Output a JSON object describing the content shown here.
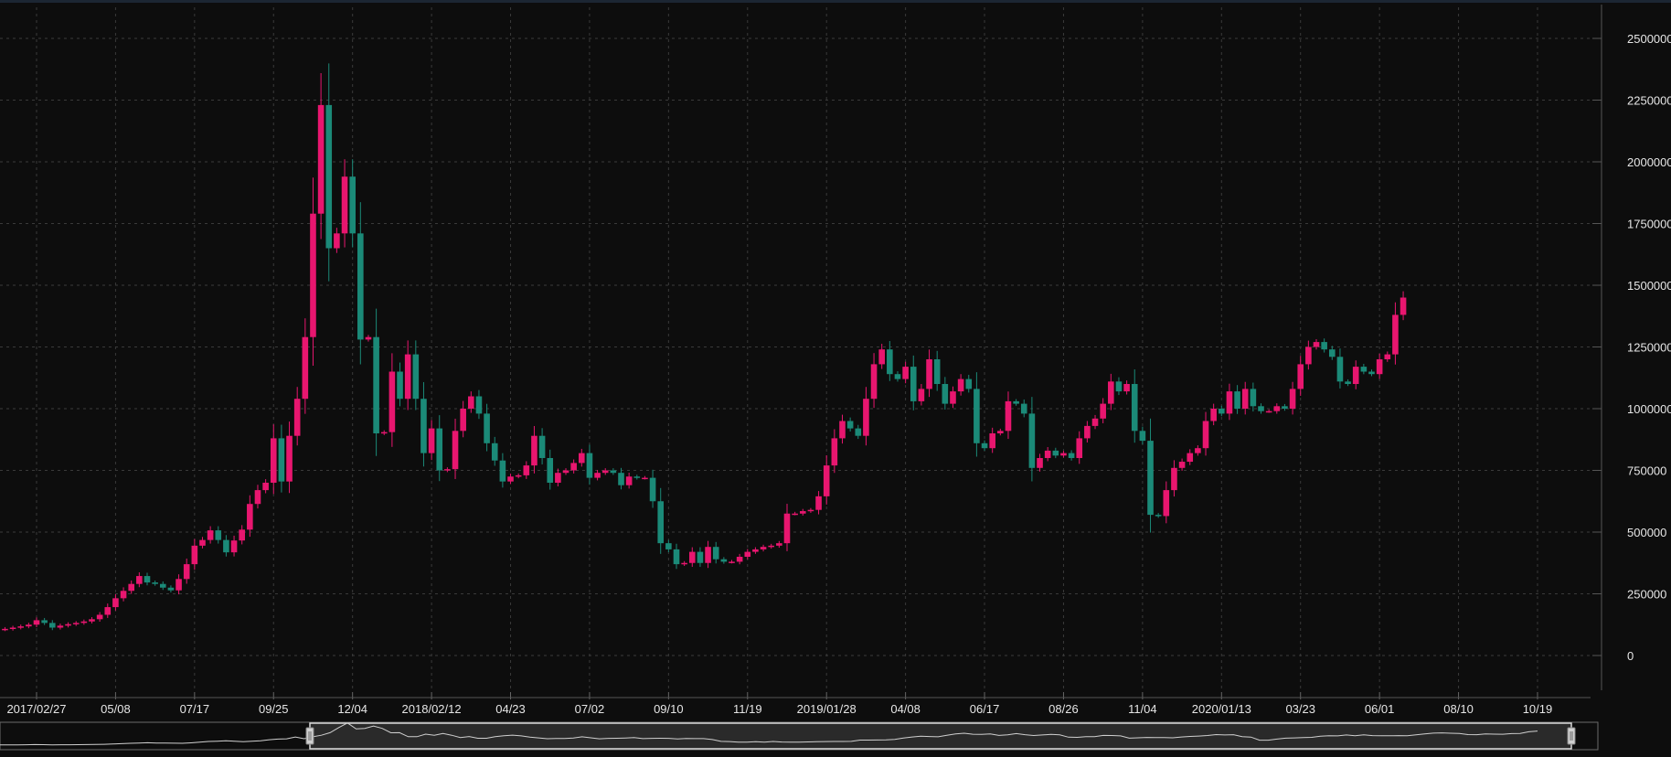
{
  "chart_data": {
    "type": "candlestick",
    "period": "weekly",
    "x_tick_labels": [
      "2017/02/27",
      "05/08",
      "07/17",
      "09/25",
      "12/04",
      "2018/02/12",
      "04/23",
      "07/02",
      "09/10",
      "11/19",
      "2019/01/28",
      "04/08",
      "06/17",
      "08/26",
      "11/04",
      "2020/01/13",
      "03/23",
      "06/01",
      "08/10",
      "10/19"
    ],
    "y_ticks": [
      "0",
      "250000",
      "500000",
      "750000",
      "1000000",
      "1250000",
      "1500000",
      "1750000",
      "2000000",
      "2250000",
      "2500000"
    ],
    "ylim": [
      -50000,
      2620000
    ],
    "grid": true,
    "colors": {
      "background": "#0d0d0d",
      "up": "#e8166f",
      "down": "#1b8a78",
      "grid": "#3a3a3a",
      "text": "#e6e6e6",
      "navigator_line": "#cfcfcf"
    },
    "close_series": [
      108000,
      113000,
      118000,
      125000,
      143000,
      132000,
      113000,
      121000,
      127000,
      132000,
      138000,
      147000,
      165000,
      196000,
      232000,
      262000,
      290000,
      322000,
      296000,
      290000,
      275000,
      264000,
      310000,
      370000,
      445000,
      468000,
      507000,
      468000,
      418000,
      466000,
      510000,
      614000,
      670000,
      700000,
      880000,
      705000,
      890000,
      1040000,
      1290000,
      1790000,
      2230000,
      1650000,
      1710000,
      1940000,
      1710000,
      1280000,
      1290000,
      900000,
      905000,
      1150000,
      1040000,
      1220000,
      1040000,
      820000,
      920000,
      750000,
      755000,
      910000,
      1000000,
      1050000,
      980000,
      860000,
      790000,
      705000,
      725000,
      730000,
      770000,
      890000,
      800000,
      700000,
      740000,
      750000,
      780000,
      820000,
      720000,
      740000,
      750000,
      740000,
      690000,
      725000,
      720000,
      720000,
      625000,
      455000,
      430000,
      370000,
      375000,
      420000,
      375000,
      440000,
      390000,
      380000,
      380000,
      400000,
      420000,
      430000,
      440000,
      445000,
      455000,
      575000,
      575000,
      585000,
      590000,
      645000,
      770000,
      880000,
      950000,
      920000,
      890000,
      1040000,
      1180000,
      1240000,
      1140000,
      1120000,
      1170000,
      1030000,
      1080000,
      1200000,
      1100000,
      1020000,
      1070000,
      1120000,
      1080000,
      860000,
      840000,
      900000,
      910000,
      1030000,
      1020000,
      980000,
      760000,
      800000,
      830000,
      810000,
      820000,
      800000,
      880000,
      930000,
      960000,
      1020000,
      1110000,
      1070000,
      1100000,
      910000,
      870000,
      570000,
      565000,
      670000,
      760000,
      785000,
      820000,
      840000,
      950000,
      1000000,
      980000,
      1070000,
      1000000,
      1080000,
      1010000,
      990000,
      990000,
      1010000,
      1000000,
      1080000,
      1180000,
      1250000,
      1270000,
      1240000,
      1210000,
      1110000,
      1100000,
      1170000,
      1150000,
      1140000,
      1200000,
      1220000,
      1380000,
      1450000
    ]
  }
}
